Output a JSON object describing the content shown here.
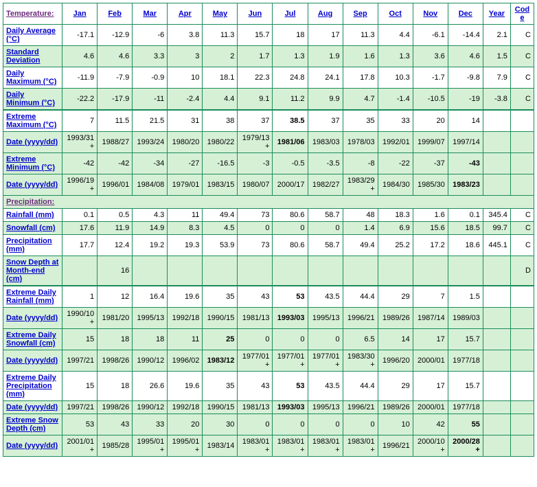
{
  "headers": {
    "section1": "Temperature:",
    "months": [
      "Jan",
      "Feb",
      "Mar",
      "Apr",
      "May",
      "Jun",
      "Jul",
      "Aug",
      "Sep",
      "Oct",
      "Nov",
      "Dec"
    ],
    "year": "Year",
    "code": "Code"
  },
  "rows": [
    {
      "label": "Daily Average (°C)",
      "cells": [
        "-17.1",
        "-12.9",
        "-6",
        "3.8",
        "11.3",
        "15.7",
        "18",
        "17",
        "11.3",
        "4.4",
        "-6.1",
        "-14.4",
        "2.1",
        "C"
      ],
      "cls": "odd"
    },
    {
      "label": "Standard Deviation",
      "cells": [
        "4.6",
        "4.6",
        "3.3",
        "3",
        "2",
        "1.7",
        "1.3",
        "1.9",
        "1.6",
        "1.3",
        "3.6",
        "4.6",
        "1.5",
        "C"
      ],
      "cls": "even"
    },
    {
      "label": "Daily Maximum (°C)",
      "cells": [
        "-11.9",
        "-7.9",
        "-0.9",
        "10",
        "18.1",
        "22.3",
        "24.8",
        "24.1",
        "17.8",
        "10.3",
        "-1.7",
        "-9.8",
        "7.9",
        "C"
      ],
      "cls": "odd"
    },
    {
      "label": "Daily Minimum (°C)",
      "cells": [
        "-22.2",
        "-17.9",
        "-11",
        "-2.4",
        "4.4",
        "9.1",
        "11.2",
        "9.9",
        "4.7",
        "-1.4",
        "-10.5",
        "-19",
        "-3.8",
        "C"
      ],
      "cls": "even"
    },
    {
      "label": "Extreme Maximum (°C)",
      "cells": [
        "7",
        "11.5",
        "21.5",
        "31",
        "38",
        "37",
        "38.5",
        "37",
        "35",
        "33",
        "20",
        "14",
        "",
        ""
      ],
      "cls": "odd",
      "bold": [
        6
      ],
      "thick": true
    },
    {
      "label": "Date (yyyy/dd)",
      "cells": [
        "1993/31+",
        "1988/27",
        "1993/24",
        "1980/20",
        "1980/22",
        "1979/13+",
        "1981/06",
        "1983/03",
        "1978/03",
        "1992/01",
        "1999/07",
        "1997/14",
        "",
        ""
      ],
      "cls": "even",
      "bold": [
        6
      ]
    },
    {
      "label": "Extreme Minimum (°C)",
      "cells": [
        "-42",
        "-42",
        "-34",
        "-27",
        "-16.5",
        "-3",
        "-0.5",
        "-3.5",
        "-8",
        "-22",
        "-37",
        "-43",
        "",
        ""
      ],
      "cls": "even",
      "bold": [
        11
      ]
    },
    {
      "label": "Date (yyyy/dd)",
      "cells": [
        "1996/19+",
        "1996/01",
        "1984/08",
        "1979/01",
        "1983/15",
        "1980/07",
        "2000/17",
        "1982/27",
        "1983/29+",
        "1984/30",
        "1985/30",
        "1983/23",
        "",
        ""
      ],
      "cls": "even",
      "bold": [
        11
      ]
    },
    {
      "section": "Precipitation:"
    },
    {
      "label": "Rainfall (mm)",
      "cells": [
        "0.1",
        "0.5",
        "4.3",
        "11",
        "49.4",
        "73",
        "80.6",
        "58.7",
        "48",
        "18.3",
        "1.6",
        "0.1",
        "345.4",
        "C"
      ],
      "cls": "odd"
    },
    {
      "label": "Snowfall (cm)",
      "cells": [
        "17.6",
        "11.9",
        "14.9",
        "8.3",
        "4.5",
        "0",
        "0",
        "0",
        "1.4",
        "6.9",
        "15.6",
        "18.5",
        "99.7",
        "C"
      ],
      "cls": "even"
    },
    {
      "label": "Precipitation (mm)",
      "cells": [
        "17.7",
        "12.4",
        "19.2",
        "19.3",
        "53.9",
        "73",
        "80.6",
        "58.7",
        "49.4",
        "25.2",
        "17.2",
        "18.6",
        "445.1",
        "C"
      ],
      "cls": "odd"
    },
    {
      "label": "Snow Depth at Month-end (cm)",
      "cells": [
        "",
        "16",
        "",
        "",
        "",
        "",
        "",
        "",
        "",
        "",
        "",
        "",
        "",
        "D"
      ],
      "cls": "even"
    },
    {
      "label": "Extreme Daily Rainfall (mm)",
      "cells": [
        "1",
        "12",
        "16.4",
        "19.6",
        "35",
        "43",
        "53",
        "43.5",
        "44.4",
        "29",
        "7",
        "1.5",
        "",
        ""
      ],
      "cls": "odd",
      "bold": [
        6
      ],
      "thick": true
    },
    {
      "label": "Date (yyyy/dd)",
      "cells": [
        "1990/10+",
        "1981/20",
        "1995/13",
        "1992/18",
        "1990/15",
        "1981/13",
        "1993/03",
        "1995/13",
        "1996/21",
        "1989/26",
        "1987/14",
        "1989/03",
        "",
        ""
      ],
      "cls": "even",
      "bold": [
        6
      ]
    },
    {
      "label": "Extreme Daily Snowfall (cm)",
      "cells": [
        "15",
        "18",
        "18",
        "11",
        "25",
        "0",
        "0",
        "0",
        "6.5",
        "14",
        "17",
        "15.7",
        "",
        ""
      ],
      "cls": "even",
      "bold": [
        4
      ]
    },
    {
      "label": "Date (yyyy/dd)",
      "cells": [
        "1997/21",
        "1998/26",
        "1990/12",
        "1996/02",
        "1983/12",
        "1977/01+",
        "1977/01+",
        "1977/01+",
        "1983/30+",
        "1996/20",
        "2000/01",
        "1977/18",
        "",
        ""
      ],
      "cls": "even",
      "bold": [
        4
      ]
    },
    {
      "label": "Extreme Daily Precipitation (mm)",
      "cells": [
        "15",
        "18",
        "26.6",
        "19.6",
        "35",
        "43",
        "53",
        "43.5",
        "44.4",
        "29",
        "17",
        "15.7",
        "",
        ""
      ],
      "cls": "odd",
      "bold": [
        6
      ]
    },
    {
      "label": "Date (yyyy/dd)",
      "cells": [
        "1997/21",
        "1998/26",
        "1990/12",
        "1992/18",
        "1990/15",
        "1981/13",
        "1993/03",
        "1995/13",
        "1996/21",
        "1989/26",
        "2000/01",
        "1977/18",
        "",
        ""
      ],
      "cls": "even",
      "bold": [
        6
      ]
    },
    {
      "label": "Extreme Snow Depth (cm)",
      "cells": [
        "53",
        "43",
        "33",
        "20",
        "30",
        "0",
        "0",
        "0",
        "0",
        "10",
        "42",
        "55",
        "",
        ""
      ],
      "cls": "even",
      "bold": [
        11
      ]
    },
    {
      "label": "Date (yyyy/dd)",
      "cells": [
        "2001/01+",
        "1985/28",
        "1995/01+",
        "1995/01+",
        "1983/14",
        "1983/01+",
        "1983/01+",
        "1983/01+",
        "1983/01+",
        "1996/21",
        "2000/10+",
        "2000/28+",
        "",
        ""
      ],
      "cls": "even",
      "bold": [
        11
      ]
    }
  ]
}
